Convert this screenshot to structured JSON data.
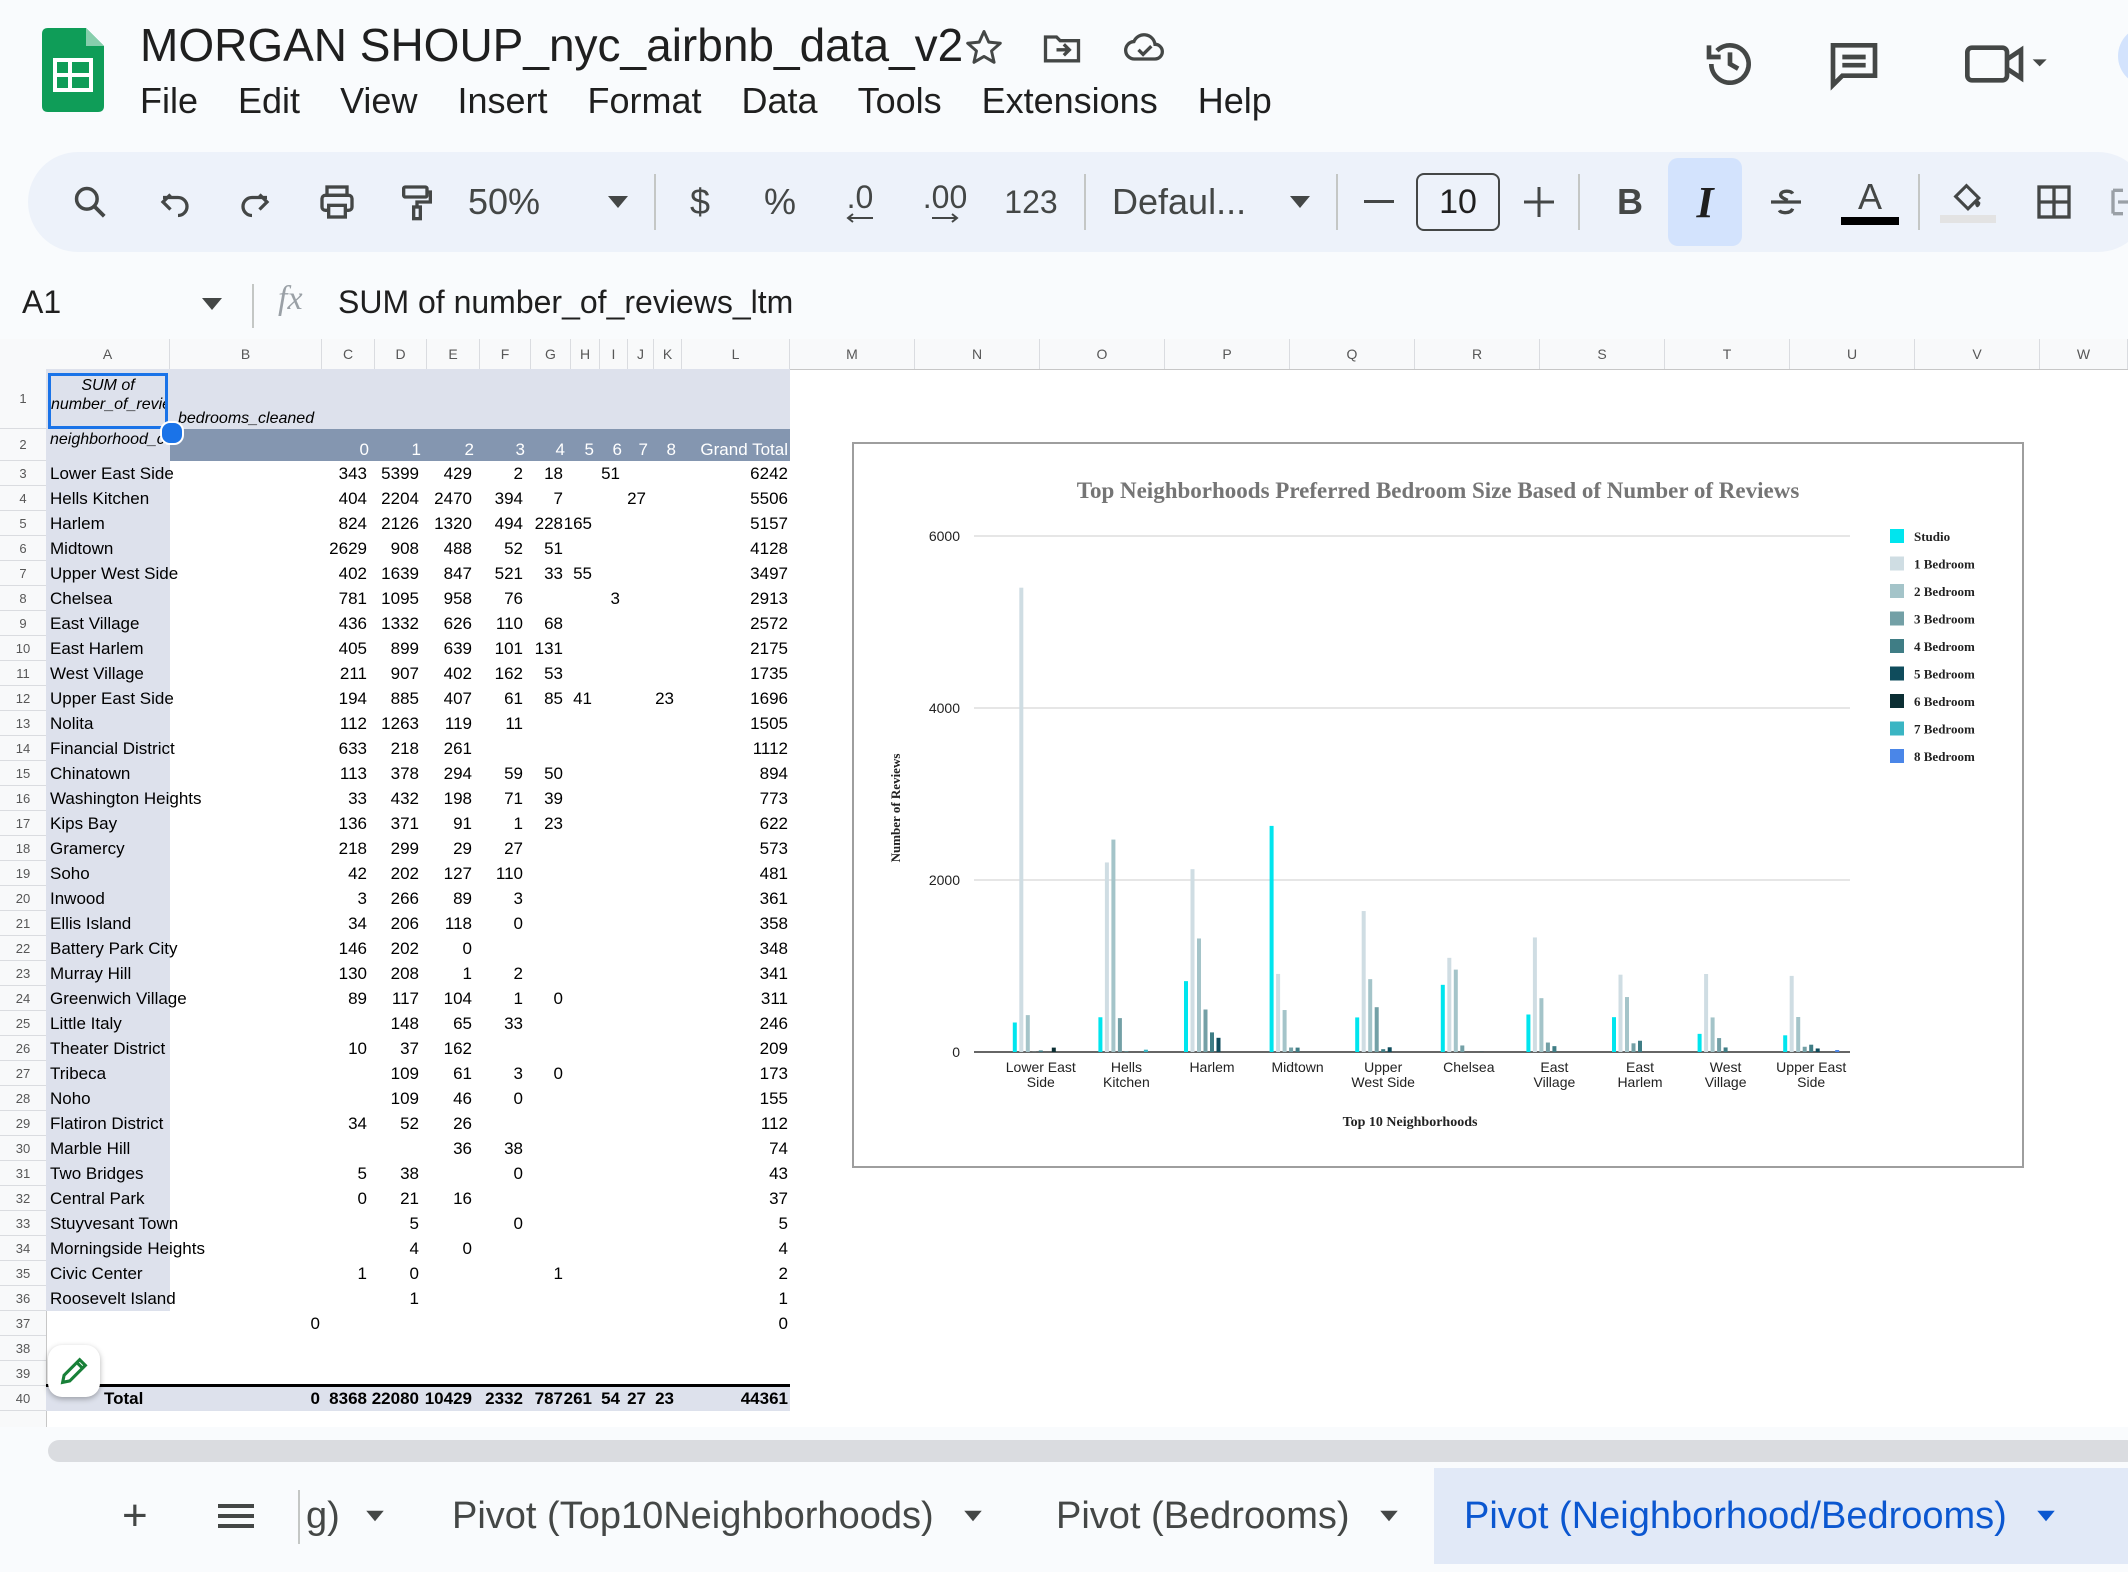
{
  "app": {
    "doc_title": "MORGAN SHOUP_nyc_airbnb_data_v2",
    "menu": [
      "File",
      "Edit",
      "View",
      "Insert",
      "Format",
      "Data",
      "Tools",
      "Extensions",
      "Help"
    ]
  },
  "toolbar": {
    "zoom": "50%",
    "currency": "$",
    "percent": "%",
    "decrease_decimal": ".0",
    "increase_decimal": ".00",
    "number_format": "123",
    "font": "Defaul...",
    "font_size": "10",
    "bold": "B",
    "italic": "I",
    "text_color": "A"
  },
  "formula_bar": {
    "name_box": "A1",
    "fx": "fx",
    "formula": "SUM of number_of_reviews_ltm"
  },
  "grid": {
    "columns": [
      "A",
      "B",
      "C",
      "D",
      "E",
      "F",
      "G",
      "H",
      "I",
      "J",
      "K",
      "L",
      "M",
      "N",
      "O",
      "P",
      "Q",
      "R",
      "S",
      "T",
      "U",
      "V",
      "W"
    ],
    "rows": [
      "1",
      "2",
      "3",
      "4",
      "5",
      "6",
      "7",
      "8",
      "9",
      "10",
      "11",
      "12",
      "13",
      "14",
      "15",
      "16",
      "17",
      "18",
      "19",
      "20",
      "21",
      "22",
      "23",
      "24",
      "25",
      "26",
      "27",
      "28",
      "29",
      "30",
      "31",
      "32",
      "33",
      "34",
      "35",
      "36",
      "37",
      "38",
      "39",
      "40"
    ],
    "pivot": {
      "a1": "SUM of number_of_reviews_ltm",
      "b1": "bedrooms_cleaned",
      "a2": "neighborhood_cleaned",
      "bedroom_headers": [
        "0",
        "1",
        "2",
        "3",
        "4",
        "5",
        "6",
        "7",
        "8"
      ],
      "grand_total_label": "Grand Total",
      "rows": [
        {
          "name": "Lower East Side",
          "v": [
            "343",
            "5399",
            "429",
            "2",
            "18",
            "",
            "51",
            "",
            ""
          ],
          "t": "6242"
        },
        {
          "name": "Hells Kitchen",
          "v": [
            "404",
            "2204",
            "2470",
            "394",
            "7",
            "",
            "",
            "27",
            ""
          ],
          "t": "5506"
        },
        {
          "name": "Harlem",
          "v": [
            "824",
            "2126",
            "1320",
            "494",
            "228",
            "165",
            "",
            "",
            ""
          ],
          "t": "5157"
        },
        {
          "name": "Midtown",
          "v": [
            "2629",
            "908",
            "488",
            "52",
            "51",
            "",
            "",
            "",
            ""
          ],
          "t": "4128"
        },
        {
          "name": "Upper West Side",
          "v": [
            "402",
            "1639",
            "847",
            "521",
            "33",
            "55",
            "",
            "",
            ""
          ],
          "t": "3497"
        },
        {
          "name": "Chelsea",
          "v": [
            "781",
            "1095",
            "958",
            "76",
            "",
            "",
            "3",
            "",
            ""
          ],
          "t": "2913"
        },
        {
          "name": "East Village",
          "v": [
            "436",
            "1332",
            "626",
            "110",
            "68",
            "",
            "",
            "",
            ""
          ],
          "t": "2572"
        },
        {
          "name": "East Harlem",
          "v": [
            "405",
            "899",
            "639",
            "101",
            "131",
            "",
            "",
            "",
            ""
          ],
          "t": "2175"
        },
        {
          "name": "West Village",
          "v": [
            "211",
            "907",
            "402",
            "162",
            "53",
            "",
            "",
            "",
            ""
          ],
          "t": "1735"
        },
        {
          "name": "Upper East Side",
          "v": [
            "194",
            "885",
            "407",
            "61",
            "85",
            "41",
            "",
            "",
            "23"
          ],
          "t": "1696"
        },
        {
          "name": "Nolita",
          "v": [
            "112",
            "1263",
            "119",
            "11",
            "",
            "",
            "",
            "",
            ""
          ],
          "t": "1505"
        },
        {
          "name": "Financial District",
          "v": [
            "633",
            "218",
            "261",
            "",
            "",
            "",
            "",
            "",
            ""
          ],
          "t": "1112"
        },
        {
          "name": "Chinatown",
          "v": [
            "113",
            "378",
            "294",
            "59",
            "50",
            "",
            "",
            "",
            ""
          ],
          "t": "894"
        },
        {
          "name": "Washington Heights",
          "v": [
            "33",
            "432",
            "198",
            "71",
            "39",
            "",
            "",
            "",
            ""
          ],
          "t": "773"
        },
        {
          "name": "Kips Bay",
          "v": [
            "136",
            "371",
            "91",
            "1",
            "23",
            "",
            "",
            "",
            ""
          ],
          "t": "622"
        },
        {
          "name": "Gramercy",
          "v": [
            "218",
            "299",
            "29",
            "27",
            "",
            "",
            "",
            "",
            ""
          ],
          "t": "573"
        },
        {
          "name": "Soho",
          "v": [
            "42",
            "202",
            "127",
            "110",
            "",
            "",
            "",
            "",
            ""
          ],
          "t": "481"
        },
        {
          "name": "Inwood",
          "v": [
            "3",
            "266",
            "89",
            "3",
            "",
            "",
            "",
            "",
            ""
          ],
          "t": "361"
        },
        {
          "name": "Ellis Island",
          "v": [
            "34",
            "206",
            "118",
            "0",
            "",
            "",
            "",
            "",
            ""
          ],
          "t": "358"
        },
        {
          "name": "Battery Park City",
          "v": [
            "146",
            "202",
            "0",
            "",
            "",
            "",
            "",
            "",
            ""
          ],
          "t": "348"
        },
        {
          "name": "Murray Hill",
          "v": [
            "130",
            "208",
            "1",
            "2",
            "",
            "",
            "",
            "",
            ""
          ],
          "t": "341"
        },
        {
          "name": "Greenwich Village",
          "v": [
            "89",
            "117",
            "104",
            "1",
            "0",
            "",
            "",
            "",
            ""
          ],
          "t": "311"
        },
        {
          "name": "Little Italy",
          "v": [
            "",
            "148",
            "65",
            "33",
            "",
            "",
            "",
            "",
            ""
          ],
          "t": "246"
        },
        {
          "name": "Theater District",
          "v": [
            "10",
            "37",
            "162",
            "",
            "",
            "",
            "",
            "",
            ""
          ],
          "t": "209"
        },
        {
          "name": "Tribeca",
          "v": [
            "",
            "109",
            "61",
            "3",
            "0",
            "",
            "",
            "",
            ""
          ],
          "t": "173"
        },
        {
          "name": "Noho",
          "v": [
            "",
            "109",
            "46",
            "0",
            "",
            "",
            "",
            "",
            ""
          ],
          "t": "155"
        },
        {
          "name": "Flatiron District",
          "v": [
            "34",
            "52",
            "26",
            "",
            "",
            "",
            "",
            "",
            ""
          ],
          "t": "112"
        },
        {
          "name": "Marble Hill",
          "v": [
            "",
            "",
            "36",
            "38",
            "",
            "",
            "",
            "",
            ""
          ],
          "t": "74"
        },
        {
          "name": "Two Bridges",
          "v": [
            "5",
            "38",
            "",
            "0",
            "",
            "",
            "",
            "",
            ""
          ],
          "t": "43"
        },
        {
          "name": "Central Park",
          "v": [
            "0",
            "21",
            "16",
            "",
            "",
            "",
            "",
            "",
            ""
          ],
          "t": "37"
        },
        {
          "name": "Stuyvesant Town",
          "v": [
            "",
            "5",
            "",
            "0",
            "",
            "",
            "",
            "",
            ""
          ],
          "t": "5"
        },
        {
          "name": "Morningside Heights",
          "v": [
            "",
            "4",
            "0",
            "",
            "",
            "",
            "",
            "",
            ""
          ],
          "t": "4"
        },
        {
          "name": "Civic Center",
          "v": [
            "1",
            "0",
            "",
            "",
            "1",
            "",
            "",
            "",
            ""
          ],
          "t": "2"
        },
        {
          "name": "Roosevelt Island",
          "v": [
            "",
            "1",
            "",
            "",
            "",
            "",
            "",
            "",
            ""
          ],
          "t": "1"
        }
      ],
      "blank_row": {
        "b": "0",
        "t": "0"
      },
      "total_row": {
        "label": "Total",
        "b": "0",
        "v": [
          "8368",
          "22080",
          "10429",
          "2332",
          "787",
          "261",
          "54",
          "27",
          "23"
        ],
        "t": "44361"
      }
    }
  },
  "chart_data": {
    "type": "bar",
    "title": "Top Neighborhoods Preferred Bedroom Size Based of Number of Reviews",
    "xlabel": "Top 10 Neighborhoods",
    "ylabel": "Number of Reviews",
    "ylim": [
      0,
      6000
    ],
    "yticks": [
      "0",
      "2000",
      "4000",
      "6000"
    ],
    "grid": true,
    "legend_position": "right",
    "categories": [
      [
        "Lower East",
        "Side"
      ],
      [
        "Hells",
        "Kitchen"
      ],
      [
        "Harlem"
      ],
      [
        "Midtown"
      ],
      [
        "Upper",
        "West Side"
      ],
      [
        "Chelsea"
      ],
      [
        "East",
        "Village"
      ],
      [
        "East",
        "Harlem"
      ],
      [
        "West",
        "Village"
      ],
      [
        "Upper East",
        "Side"
      ]
    ],
    "series": [
      {
        "name": "Studio",
        "color": "#00e5ee",
        "values": [
          343,
          404,
          824,
          2629,
          402,
          781,
          436,
          405,
          211,
          194
        ]
      },
      {
        "name": "1 Bedroom",
        "color": "#cfdde3",
        "values": [
          5399,
          2204,
          2126,
          908,
          1639,
          1095,
          1332,
          899,
          907,
          885
        ]
      },
      {
        "name": "2 Bedroom",
        "color": "#a4c4c9",
        "values": [
          429,
          2470,
          1320,
          488,
          847,
          958,
          626,
          639,
          402,
          407
        ]
      },
      {
        "name": "3 Bedroom",
        "color": "#73a0a6",
        "values": [
          2,
          394,
          494,
          52,
          521,
          76,
          110,
          101,
          162,
          61
        ]
      },
      {
        "name": "4 Bedroom",
        "color": "#3f7d85",
        "values": [
          18,
          7,
          228,
          51,
          33,
          0,
          68,
          131,
          53,
          85
        ]
      },
      {
        "name": "5 Bedroom",
        "color": "#0f4c5c",
        "values": [
          0,
          0,
          165,
          0,
          55,
          0,
          0,
          0,
          0,
          41
        ]
      },
      {
        "name": "6 Bedroom",
        "color": "#0b2e33",
        "values": [
          51,
          0,
          0,
          0,
          0,
          3,
          0,
          0,
          0,
          0
        ]
      },
      {
        "name": "7 Bedroom",
        "color": "#3ab5c3",
        "values": [
          0,
          27,
          0,
          0,
          0,
          0,
          0,
          0,
          0,
          0
        ]
      },
      {
        "name": "8 Bedroom",
        "color": "#4a86e8",
        "values": [
          0,
          0,
          0,
          0,
          0,
          0,
          0,
          0,
          0,
          23
        ]
      }
    ]
  },
  "sheets": {
    "add": "+",
    "partial_tab": "g)",
    "tabs": [
      "Pivot (Top10Neighborhoods)",
      "Pivot (Bedrooms)",
      "Pivot (Neighborhood/Bedrooms)"
    ],
    "active_index": 2
  },
  "colors": {
    "header_band": "#8496b0",
    "light_band": "#dde1ec",
    "active_tab": "#0b57d0",
    "toolbar_bg": "#edf2fa"
  }
}
